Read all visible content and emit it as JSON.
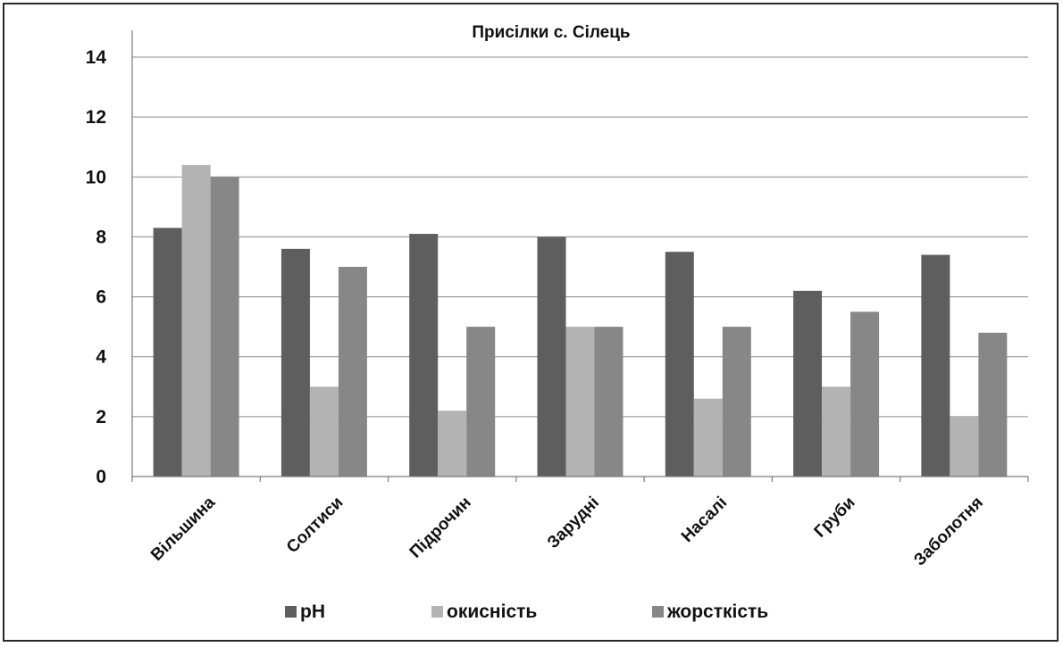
{
  "chart_data": {
    "type": "bar",
    "title": "Присілки с. Сілець",
    "xlabel": "",
    "ylabel": "",
    "categories": [
      "Вільшина",
      "Солтиси",
      "Підрочин",
      "Заруднi",
      "Насалi",
      "Груби",
      "Заболотня"
    ],
    "series": [
      {
        "name": "pH",
        "color": "#5e5e5e",
        "values": [
          8.3,
          7.6,
          8.1,
          8.0,
          7.5,
          6.2,
          7.4
        ]
      },
      {
        "name": "окисність",
        "color": "#b3b3b3",
        "values": [
          10.4,
          3.0,
          2.2,
          5.0,
          2.6,
          3.0,
          2.0
        ]
      },
      {
        "name": "жорсткість",
        "color": "#878787",
        "values": [
          10.0,
          7.0,
          5.0,
          5.0,
          5.0,
          5.5,
          4.8
        ]
      }
    ],
    "ylim": [
      0,
      14
    ],
    "yticks": [
      0,
      2,
      4,
      6,
      8,
      10,
      12,
      14
    ],
    "grid": true,
    "legend_position": "bottom"
  }
}
